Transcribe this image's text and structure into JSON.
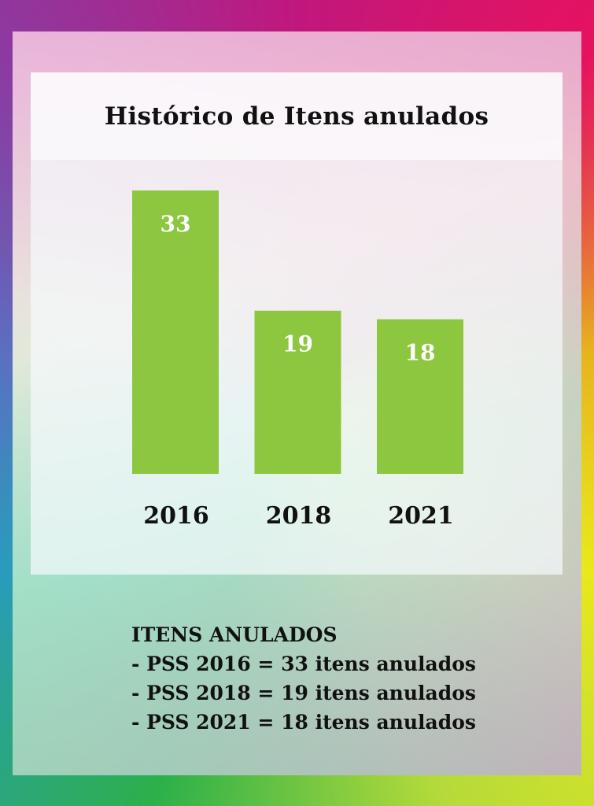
{
  "chart_data": {
    "type": "bar",
    "title": "Histórico de Itens anulados",
    "categories": [
      "2016",
      "2018",
      "2021"
    ],
    "values": [
      33,
      19,
      18
    ],
    "ylim": [
      0,
      33
    ],
    "grid": false,
    "bar_color": "#8dc63f",
    "data_labels": [
      "33",
      "19",
      "18"
    ]
  },
  "summary": {
    "heading": "ITENS ANULADOS",
    "lines": [
      "- PSS 2016 = 33 itens anulados",
      "- PSS 2018 = 19 itens anulados",
      "- PSS 2021 = 18 itens anulados"
    ]
  }
}
